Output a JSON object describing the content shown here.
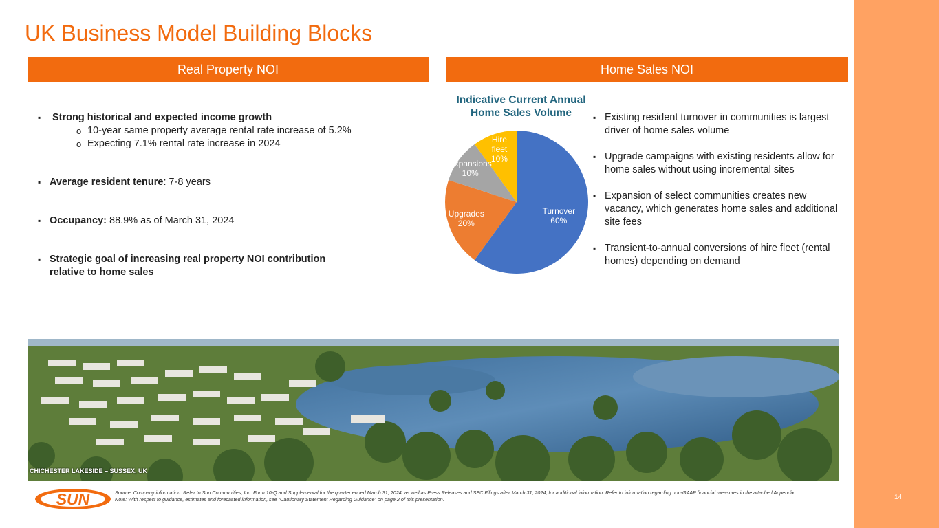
{
  "title": "UK Business Model Building Blocks",
  "sections": {
    "left_header": "Real Property NOI",
    "right_header": "Home Sales NOI"
  },
  "left_bullets": {
    "b1": "Strong historical and expected income growth",
    "b1_sub1": "10-year same property average rental rate increase of 5.2%",
    "b1_sub2": "Expecting 7.1% rental rate increase in 2024",
    "b2_bold": "Average resident tenure",
    "b2_rest": ": 7-8 years",
    "b3_bold": "Occupancy:",
    "b3_rest": " 88.9% as of March 31, 2024",
    "b4": "Strategic goal of increasing real property NOI contribution relative to home sales"
  },
  "right_bullets": [
    "Existing resident turnover in communities is largest driver of home sales volume",
    "Upgrade campaigns with existing residents allow for home sales without using incremental sites",
    "Expansion of select communities creates new vacancy, which generates home sales and additional site fees",
    "Transient-to-annual conversions of hire fleet (rental homes) depending on demand"
  ],
  "chart_data": {
    "type": "pie",
    "title": "Indicative Current Annual Home Sales Volume",
    "slices": [
      {
        "label": "Turnover",
        "value": 60,
        "pct": "60%",
        "color": "#4472c4"
      },
      {
        "label": "Upgrades",
        "value": 20,
        "pct": "20%",
        "color": "#ed7d31"
      },
      {
        "label": "Expansions",
        "value": 10,
        "pct": "10%",
        "color": "#a5a5a5"
      },
      {
        "label": "Hire fleet",
        "value": 10,
        "pct": "10%",
        "color": "#ffc000"
      }
    ]
  },
  "photo_caption": "CHICHESTER LAKESIDE – SUSSEX, UK",
  "logo_text": "SUN",
  "footnote_line1": "Source: Company information. Refer to Sun Communities, Inc. Form 10-Q and Supplemental for the quarter ended March 31, 2024, as well as Press Releases and SEC Filings after March 31, 2024, for additional information. Refer to information regarding non-GAAP financial measures in the attached Appendix.",
  "footnote_line2": "Note: With respect to guidance, estimates and forecasted information, see “Cautionary Statement Regarding Guidance” on page 2 of this presentation.",
  "page_number": "14",
  "colors": {
    "accent": "#f26b0f",
    "strip": "#ffa262",
    "chart_title": "#23667f"
  }
}
